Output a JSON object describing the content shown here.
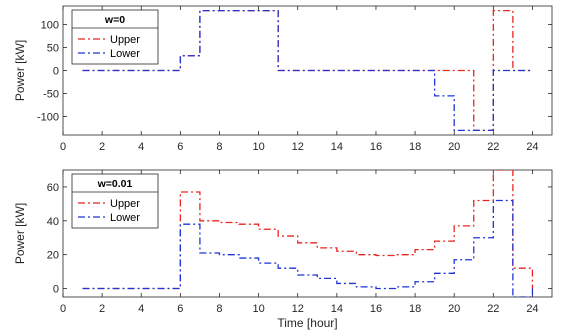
{
  "chart_data": [
    {
      "type": "line",
      "step": "post",
      "title": "",
      "legend_title": "w=0",
      "legend_position": "top-left",
      "xlabel": "",
      "ylabel": "Power [kW]",
      "xlim": [
        0,
        25
      ],
      "ylim": [
        -140,
        140
      ],
      "xticks": [
        0,
        2,
        4,
        6,
        8,
        10,
        12,
        14,
        16,
        18,
        20,
        22,
        24
      ],
      "yticks": [
        -100,
        -50,
        0,
        50,
        100
      ],
      "grid": false,
      "x": [
        1,
        2,
        3,
        4,
        5,
        6,
        7,
        8,
        9,
        10,
        11,
        12,
        13,
        14,
        15,
        16,
        17,
        18,
        19,
        20,
        21,
        22,
        23,
        24
      ],
      "series": [
        {
          "name": "Upper",
          "color": "#e8251f",
          "style": "dash-dot",
          "values": [
            0,
            0,
            0,
            0,
            0,
            32,
            130,
            130,
            130,
            130,
            0,
            0,
            0,
            0,
            0,
            0,
            0,
            0,
            0,
            0,
            -130,
            130,
            0,
            0
          ]
        },
        {
          "name": "Lower",
          "color": "#1f35d8",
          "style": "dash-dot",
          "values": [
            0,
            0,
            0,
            0,
            0,
            32,
            130,
            130,
            130,
            130,
            0,
            0,
            0,
            0,
            0,
            0,
            0,
            0,
            -55,
            -130,
            -130,
            0,
            0,
            0
          ]
        }
      ]
    },
    {
      "type": "line",
      "step": "post",
      "title": "",
      "legend_title": "w=0.01",
      "legend_position": "top-left",
      "xlabel": "Time [hour]",
      "ylabel": "Power [kW]",
      "xlim": [
        0,
        25
      ],
      "ylim": [
        -5,
        70
      ],
      "xticks": [
        0,
        2,
        4,
        6,
        8,
        10,
        12,
        14,
        16,
        18,
        20,
        22,
        24
      ],
      "yticks": [
        0,
        20,
        40,
        60
      ],
      "grid": false,
      "x": [
        1,
        2,
        3,
        4,
        5,
        6,
        7,
        8,
        9,
        10,
        11,
        12,
        13,
        14,
        15,
        16,
        17,
        18,
        19,
        20,
        21,
        22,
        23,
        24
      ],
      "series": [
        {
          "name": "Upper",
          "color": "#e8251f",
          "style": "dash-dot",
          "values": [
            0,
            0,
            0,
            0,
            0,
            57,
            40,
            39,
            38,
            35,
            31,
            27,
            24,
            22,
            20,
            19.5,
            20,
            23,
            28,
            37,
            52,
            70,
            12,
            0
          ]
        },
        {
          "name": "Lower",
          "color": "#1f35d8",
          "style": "dash-dot",
          "values": [
            0,
            0,
            0,
            0,
            0,
            38,
            21,
            20,
            18,
            15,
            12,
            8,
            6,
            3,
            1,
            0,
            1,
            4,
            9,
            17,
            30,
            52,
            -5,
            0
          ]
        }
      ]
    }
  ]
}
